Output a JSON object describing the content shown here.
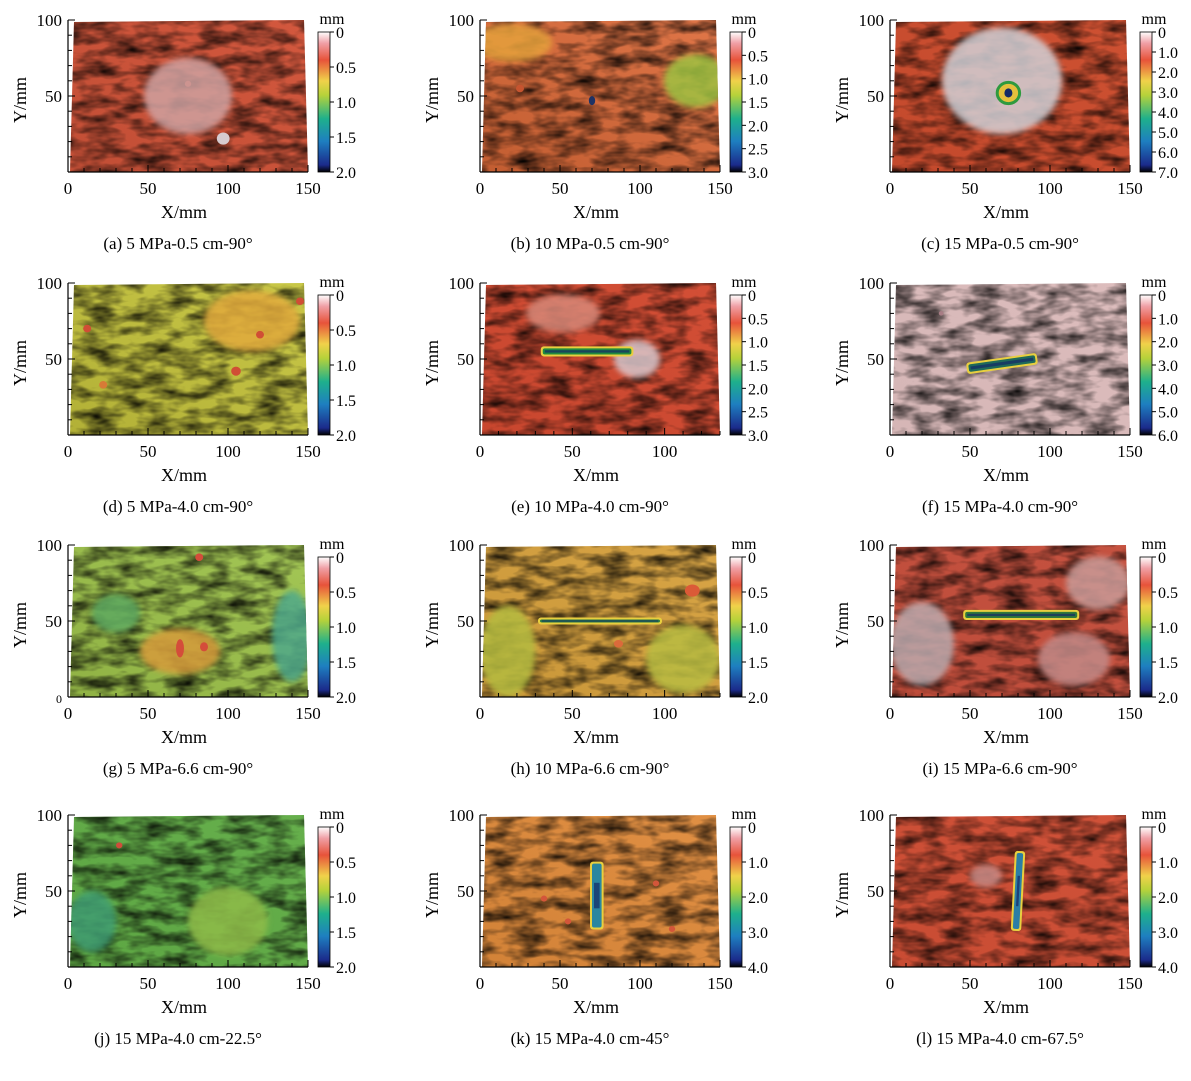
{
  "chart_data": [
    {
      "type": "heatmap",
      "id": "a",
      "caption": "(a) 5 MPa-0.5 cm-90°",
      "xlabel": "X/mm",
      "ylabel": "Y/mm",
      "x_ticks": [
        "0",
        "50",
        "100",
        "150"
      ],
      "y_ticks": [
        "100",
        "50"
      ],
      "xlim": [
        0,
        150
      ],
      "ylim": [
        0,
        100
      ],
      "colorbar": {
        "unit": "mm",
        "ticks": [
          "0",
          "0.5",
          "1.0",
          "1.5",
          "2.0"
        ],
        "range": [
          0,
          2.0
        ]
      },
      "surface": {
        "base": "#d2553a",
        "slope": [
          0.08,
          0.02
        ],
        "rough": "#ab3422"
      },
      "features": [
        {
          "shape": "circle",
          "x": 97,
          "y": 22,
          "w": 8,
          "h": 8,
          "color": "#d6ccd0"
        },
        {
          "shape": "ellipse",
          "x": 108,
          "y": 5,
          "w": 22,
          "h": 4,
          "color": "#c9c8d8"
        },
        {
          "shape": "circle",
          "x": 75,
          "y": 58,
          "w": 4,
          "h": 4,
          "color": "#c44a3a"
        },
        {
          "shape": "patch",
          "x": 75,
          "y": 50,
          "w": 55,
          "h": 50,
          "color": "#cfa1a0"
        }
      ]
    },
    {
      "type": "heatmap",
      "id": "b",
      "caption": "(b) 10 MPa-0.5 cm-90°",
      "xlabel": "X/mm",
      "ylabel": "Y/mm",
      "x_ticks": [
        "0",
        "50",
        "100",
        "150"
      ],
      "y_ticks": [
        "100",
        "50"
      ],
      "xlim": [
        0,
        150
      ],
      "ylim": [
        0,
        100
      ],
      "colorbar": {
        "unit": "mm",
        "ticks": [
          "0",
          "0.5",
          "1.0",
          "1.5",
          "2.0",
          "2.5",
          "3.0"
        ],
        "range": [
          0,
          3.0
        ]
      },
      "surface": {
        "base": "#dd6a38",
        "slope": [
          0.12,
          0.08
        ],
        "rough": "#bf4b22"
      },
      "features": [
        {
          "shape": "patch",
          "x": 135,
          "y": 60,
          "w": 40,
          "h": 35,
          "color": "#9fc243"
        },
        {
          "shape": "patch",
          "x": 20,
          "y": 85,
          "w": 50,
          "h": 25,
          "color": "#e6a13c"
        },
        {
          "shape": "circle",
          "x": 70,
          "y": 47,
          "w": 4,
          "h": 6,
          "color": "#1e3264"
        },
        {
          "shape": "circle",
          "x": 25,
          "y": 55,
          "w": 5,
          "h": 5,
          "color": "#c6542f"
        }
      ]
    },
    {
      "type": "heatmap",
      "id": "c",
      "caption": "(c) 15 MPa-0.5 cm-90°",
      "xlabel": "X/mm",
      "ylabel": "Y/mm",
      "x_ticks": [
        "0",
        "50",
        "100",
        "150"
      ],
      "y_ticks": [
        "100",
        "50"
      ],
      "xlim": [
        0,
        150
      ],
      "ylim": [
        0,
        100
      ],
      "colorbar": {
        "unit": "mm",
        "ticks": [
          "0",
          "1.0",
          "2.0",
          "3.0",
          "4.0",
          "5.0",
          "6.0",
          "7.0"
        ],
        "range": [
          0,
          7.0
        ]
      },
      "surface": {
        "base": "#cd4d2e",
        "slope": [
          0.05,
          0.02
        ],
        "rough": "#a33220"
      },
      "features": [
        {
          "shape": "patch",
          "x": 70,
          "y": 60,
          "w": 75,
          "h": 70,
          "color": "#d2d0d6"
        },
        {
          "shape": "ring",
          "x": 74,
          "y": 52,
          "w": 14,
          "h": 14,
          "color": "#2f9a3e"
        },
        {
          "shape": "circle",
          "x": 74,
          "y": 52,
          "w": 5,
          "h": 6,
          "color": "#142a66"
        }
      ]
    },
    {
      "type": "heatmap",
      "id": "d",
      "caption": "(d) 5 MPa-4.0 cm-90°",
      "xlabel": "X/mm",
      "ylabel": "Y/mm",
      "x_ticks": [
        "0",
        "50",
        "100",
        "150"
      ],
      "y_ticks": [
        "100",
        "50"
      ],
      "xlim": [
        0,
        150
      ],
      "ylim": [
        0,
        100
      ],
      "colorbar": {
        "unit": "mm",
        "ticks": [
          "0",
          "0.5",
          "1.0",
          "1.5",
          "2.0"
        ],
        "range": [
          0,
          2.0
        ]
      },
      "surface": {
        "base": "#c6c43c",
        "slope": [
          0.1,
          0.06
        ],
        "rough": "#a3a12a"
      },
      "features": [
        {
          "shape": "patch",
          "x": 115,
          "y": 75,
          "w": 60,
          "h": 40,
          "color": "#e1aa3e"
        },
        {
          "shape": "circle",
          "x": 105,
          "y": 42,
          "w": 6,
          "h": 6,
          "color": "#d04e35"
        },
        {
          "shape": "circle",
          "x": 120,
          "y": 66,
          "w": 5,
          "h": 5,
          "color": "#d04e35"
        },
        {
          "shape": "circle",
          "x": 12,
          "y": 70,
          "w": 5,
          "h": 5,
          "color": "#d04e35"
        },
        {
          "shape": "circle",
          "x": 22,
          "y": 33,
          "w": 5,
          "h": 5,
          "color": "#d77a36"
        },
        {
          "shape": "circle",
          "x": 145,
          "y": 88,
          "w": 5,
          "h": 5,
          "color": "#d04e35"
        }
      ]
    },
    {
      "type": "heatmap",
      "id": "e",
      "caption": "(e) 10 MPa-4.0 cm-90°",
      "xlabel": "X/mm",
      "ylabel": "Y/mm",
      "x_ticks": [
        "0",
        "50",
        "100"
      ],
      "y_ticks": [
        "100",
        "50"
      ],
      "xlim": [
        0,
        130
      ],
      "ylim": [
        0,
        100
      ],
      "colorbar": {
        "unit": "mm",
        "ticks": [
          "0",
          "0.5",
          "1.0",
          "1.5",
          "2.0",
          "2.5",
          "3.0"
        ],
        "range": [
          0,
          3.0
        ]
      },
      "surface": {
        "base": "#d24a30",
        "slope": [
          0.05,
          0.03
        ],
        "rough": "#a8301d"
      },
      "features": [
        {
          "shape": "patch",
          "x": 85,
          "y": 50,
          "w": 25,
          "h": 25,
          "color": "#d9c7cc"
        },
        {
          "shape": "patch",
          "x": 45,
          "y": 80,
          "w": 40,
          "h": 25,
          "color": "#d88878"
        },
        {
          "shape": "slot",
          "x": 58,
          "y": 55,
          "w": 48,
          "h": 4,
          "color": "#1f8a3e"
        }
      ]
    },
    {
      "type": "heatmap",
      "id": "f",
      "caption": "(f) 15 MPa-4.0 cm-90°",
      "xlabel": "X/mm",
      "ylabel": "Y/mm",
      "x_ticks": [
        "0",
        "50",
        "100",
        "150"
      ],
      "y_ticks": [
        "100",
        "50"
      ],
      "xlim": [
        0,
        150
      ],
      "ylim": [
        0,
        100
      ],
      "colorbar": {
        "unit": "mm",
        "ticks": [
          "0",
          "1.0",
          "2.0",
          "3.0",
          "4.0",
          "5.0",
          "6.0"
        ],
        "range": [
          0,
          6.0
        ]
      },
      "surface": {
        "base": "#dcbcbc",
        "slope": [
          0.03,
          0.02
        ],
        "rough": "#bd9ea0"
      },
      "features": [
        {
          "shape": "slot",
          "x": 70,
          "y": 47,
          "w": 42,
          "h": 5,
          "color": "#1f6a5a",
          "angle": -8
        },
        {
          "shape": "circle",
          "x": 32,
          "y": 80,
          "w": 3,
          "h": 3,
          "color": "#a87d85"
        }
      ]
    },
    {
      "type": "heatmap",
      "id": "g",
      "caption": "(g) 5 MPa-6.6 cm-90°",
      "xlabel": "X/mm",
      "ylabel": "Y/mm",
      "x_ticks": [
        "0",
        "50",
        "100",
        "150"
      ],
      "y_ticks": [
        "100",
        "50",
        "0"
      ],
      "xlim": [
        0,
        150
      ],
      "ylim": [
        0,
        100
      ],
      "colorbar": {
        "unit": "mm",
        "ticks": [
          "0",
          "0.5",
          "1.0",
          "1.5",
          "2.0"
        ],
        "range": [
          0,
          2.0
        ]
      },
      "surface": {
        "base": "#9dc24a",
        "slope": [
          0.08,
          0.06
        ],
        "rough": "#6d9a32"
      },
      "features": [
        {
          "shape": "patch",
          "x": 140,
          "y": 40,
          "w": 25,
          "h": 60,
          "color": "#4fa98a"
        },
        {
          "shape": "patch",
          "x": 70,
          "y": 30,
          "w": 50,
          "h": 30,
          "color": "#d69b3b"
        },
        {
          "shape": "circle",
          "x": 70,
          "y": 32,
          "w": 5,
          "h": 12,
          "color": "#d44d3a"
        },
        {
          "shape": "circle",
          "x": 85,
          "y": 33,
          "w": 5,
          "h": 6,
          "color": "#d44d3a"
        },
        {
          "shape": "circle",
          "x": 82,
          "y": 92,
          "w": 5,
          "h": 5,
          "color": "#d44d3a"
        },
        {
          "shape": "patch",
          "x": 30,
          "y": 55,
          "w": 30,
          "h": 25,
          "color": "#5da860"
        }
      ]
    },
    {
      "type": "heatmap",
      "id": "h",
      "caption": "(h) 10 MPa-6.6 cm-90°",
      "xlabel": "X/mm",
      "ylabel": "Y/mm",
      "x_ticks": [
        "0",
        "50",
        "100"
      ],
      "y_ticks": [
        "100",
        "50"
      ],
      "xlim": [
        0,
        130
      ],
      "ylim": [
        0,
        100
      ],
      "colorbar": {
        "unit": "mm",
        "ticks": [
          "0",
          "0.5",
          "1.0",
          "1.5",
          "2.0"
        ],
        "range": [
          0,
          2.0
        ]
      },
      "surface": {
        "base": "#d6a03c",
        "slope": [
          0.06,
          0.05
        ],
        "rough": "#b07a28"
      },
      "features": [
        {
          "shape": "patch",
          "x": 15,
          "y": 30,
          "w": 30,
          "h": 60,
          "color": "#b4bb40"
        },
        {
          "shape": "patch",
          "x": 110,
          "y": 25,
          "w": 40,
          "h": 45,
          "color": "#b9bd42"
        },
        {
          "shape": "circle",
          "x": 115,
          "y": 70,
          "w": 8,
          "h": 8,
          "color": "#db5a37"
        },
        {
          "shape": "circle",
          "x": 75,
          "y": 35,
          "w": 5,
          "h": 5,
          "color": "#db6a3b"
        },
        {
          "shape": "slot",
          "x": 65,
          "y": 50,
          "w": 65,
          "h": 2,
          "color": "#2b7a45"
        }
      ]
    },
    {
      "type": "heatmap",
      "id": "i",
      "caption": "(i) 15 MPa-6.6 cm-90°",
      "xlabel": "X/mm",
      "ylabel": "Y/mm",
      "x_ticks": [
        "0",
        "50",
        "100",
        "150"
      ],
      "y_ticks": [
        "100",
        "50"
      ],
      "xlim": [
        0,
        150
      ],
      "ylim": [
        0,
        100
      ],
      "colorbar": {
        "unit": "mm",
        "ticks": [
          "0",
          "0.5",
          "1.0",
          "1.5",
          "2.0"
        ],
        "range": [
          0,
          2.0
        ]
      },
      "surface": {
        "base": "#c44e3c",
        "slope": [
          0.03,
          0.02
        ],
        "rough": "#9f3424"
      },
      "features": [
        {
          "shape": "patch",
          "x": 20,
          "y": 35,
          "w": 40,
          "h": 55,
          "color": "#bcaaad"
        },
        {
          "shape": "patch",
          "x": 130,
          "y": 75,
          "w": 40,
          "h": 35,
          "color": "#c99b98"
        },
        {
          "shape": "patch",
          "x": 115,
          "y": 25,
          "w": 45,
          "h": 35,
          "color": "#c28a88"
        },
        {
          "shape": "slot",
          "x": 82,
          "y": 54,
          "w": 70,
          "h": 4,
          "color": "#2f7a3a"
        }
      ]
    },
    {
      "type": "heatmap",
      "id": "j",
      "caption": "(j) 15 MPa-4.0 cm-22.5°",
      "xlabel": "X/mm",
      "ylabel": "Y/mm",
      "x_ticks": [
        "0",
        "50",
        "100",
        "150"
      ],
      "y_ticks": [
        "100",
        "50"
      ],
      "xlim": [
        0,
        150
      ],
      "ylim": [
        0,
        100
      ],
      "colorbar": {
        "unit": "mm",
        "ticks": [
          "0",
          "0.5",
          "1.0",
          "1.5",
          "2.0"
        ],
        "range": [
          0,
          2.0
        ]
      },
      "surface": {
        "base": "#61ad46",
        "slope": [
          0.04,
          0.03
        ],
        "rough": "#458a34"
      },
      "features": [
        {
          "shape": "patch",
          "x": 100,
          "y": 30,
          "w": 50,
          "h": 45,
          "color": "#8fbc4a"
        },
        {
          "shape": "patch",
          "x": 15,
          "y": 30,
          "w": 30,
          "h": 40,
          "color": "#3f9d72"
        },
        {
          "shape": "circle",
          "x": 32,
          "y": 80,
          "w": 4,
          "h": 4,
          "color": "#cf4d3a"
        }
      ]
    },
    {
      "type": "heatmap",
      "id": "k",
      "caption": "(k) 15 MPa-4.0 cm-45°",
      "xlabel": "X/mm",
      "ylabel": "Y/mm",
      "x_ticks": [
        "0",
        "50",
        "100",
        "150"
      ],
      "y_ticks": [
        "100",
        "50"
      ],
      "xlim": [
        0,
        150
      ],
      "ylim": [
        0,
        100
      ],
      "colorbar": {
        "unit": "mm",
        "ticks": [
          "0",
          "1.0",
          "2.0",
          "3.0",
          "4.0"
        ],
        "range": [
          0,
          4.0
        ]
      },
      "surface": {
        "base": "#df8a3a",
        "slope": [
          0.06,
          0.05
        ],
        "rough": "#c16a28"
      },
      "features": [
        {
          "shape": "slot",
          "x": 73,
          "y": 47,
          "w": 6,
          "h": 42,
          "color": "#2a86a0"
        },
        {
          "shape": "circle",
          "x": 40,
          "y": 45,
          "w": 4,
          "h": 4,
          "color": "#d3563a"
        },
        {
          "shape": "circle",
          "x": 110,
          "y": 55,
          "w": 4,
          "h": 4,
          "color": "#d3563a"
        },
        {
          "shape": "circle",
          "x": 55,
          "y": 30,
          "w": 4,
          "h": 4,
          "color": "#d3563a"
        },
        {
          "shape": "circle",
          "x": 120,
          "y": 25,
          "w": 4,
          "h": 4,
          "color": "#d3563a"
        }
      ]
    },
    {
      "type": "heatmap",
      "id": "l",
      "caption": "(l) 15 MPa-4.0 cm-67.5°",
      "xlabel": "X/mm",
      "ylabel": "Y/mm",
      "x_ticks": [
        "0",
        "50",
        "100",
        "150"
      ],
      "y_ticks": [
        "100",
        "50"
      ],
      "xlim": [
        0,
        150
      ],
      "ylim": [
        0,
        100
      ],
      "colorbar": {
        "unit": "mm",
        "ticks": [
          "0",
          "1.0",
          "2.0",
          "3.0",
          "4.0"
        ],
        "range": [
          0,
          4.0
        ]
      },
      "surface": {
        "base": "#cf4e35",
        "slope": [
          0.03,
          0.02
        ],
        "rough": "#a8331f"
      },
      "features": [
        {
          "shape": "slot",
          "x": 80,
          "y": 50,
          "w": 4,
          "h": 50,
          "color": "#2b7ea6",
          "angle": 3
        },
        {
          "shape": "patch",
          "x": 60,
          "y": 60,
          "w": 20,
          "h": 15,
          "color": "#c98b86"
        }
      ]
    }
  ]
}
